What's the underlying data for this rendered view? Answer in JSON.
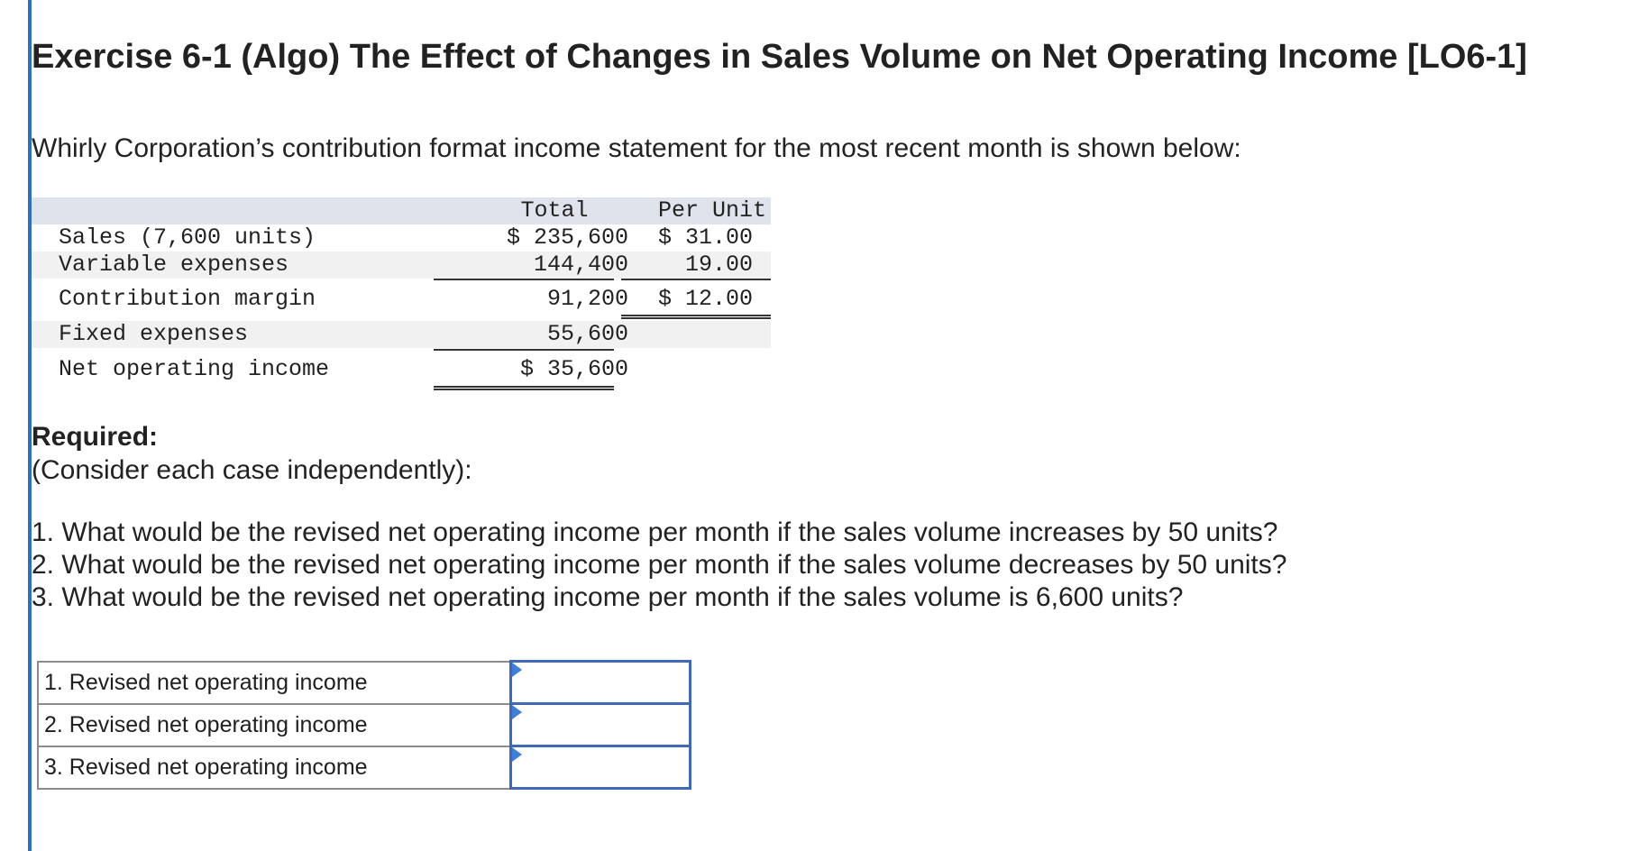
{
  "exercise": {
    "title": "Exercise 6-1 (Algo) The Effect of Changes in Sales Volume on Net Operating Income [LO6-1]",
    "intro": "Whirly Corporation’s contribution format income statement for the most recent month is shown below:"
  },
  "statement": {
    "headers": {
      "total": "Total",
      "per_unit": "Per Unit"
    },
    "rows": [
      {
        "label": "Sales (7,600 units)",
        "total": "$ 235,600",
        "per_unit": "$ 31.00"
      },
      {
        "label": "Variable expenses",
        "total": "144,400",
        "per_unit": "19.00"
      },
      {
        "label": "Contribution margin",
        "total": "91,200",
        "per_unit": "$ 12.00"
      },
      {
        "label": "Fixed expenses",
        "total": "55,600",
        "per_unit": ""
      },
      {
        "label": "Net operating income",
        "total": "$ 35,600",
        "per_unit": ""
      }
    ]
  },
  "required": {
    "heading": "Required:",
    "subheading": "(Consider each case independently):",
    "questions": [
      "1. What would be the revised net operating income per month if the sales volume increases by 50 units?",
      "2. What would be the revised net operating income per month if the sales volume decreases by 50 units?",
      "3. What would be the revised net operating income per month if the sales volume is 6,600 units?"
    ]
  },
  "answers": [
    {
      "label": "1. Revised net operating income",
      "value": ""
    },
    {
      "label": "2. Revised net operating income",
      "value": ""
    },
    {
      "label": "3. Revised net operating income",
      "value": ""
    }
  ]
}
